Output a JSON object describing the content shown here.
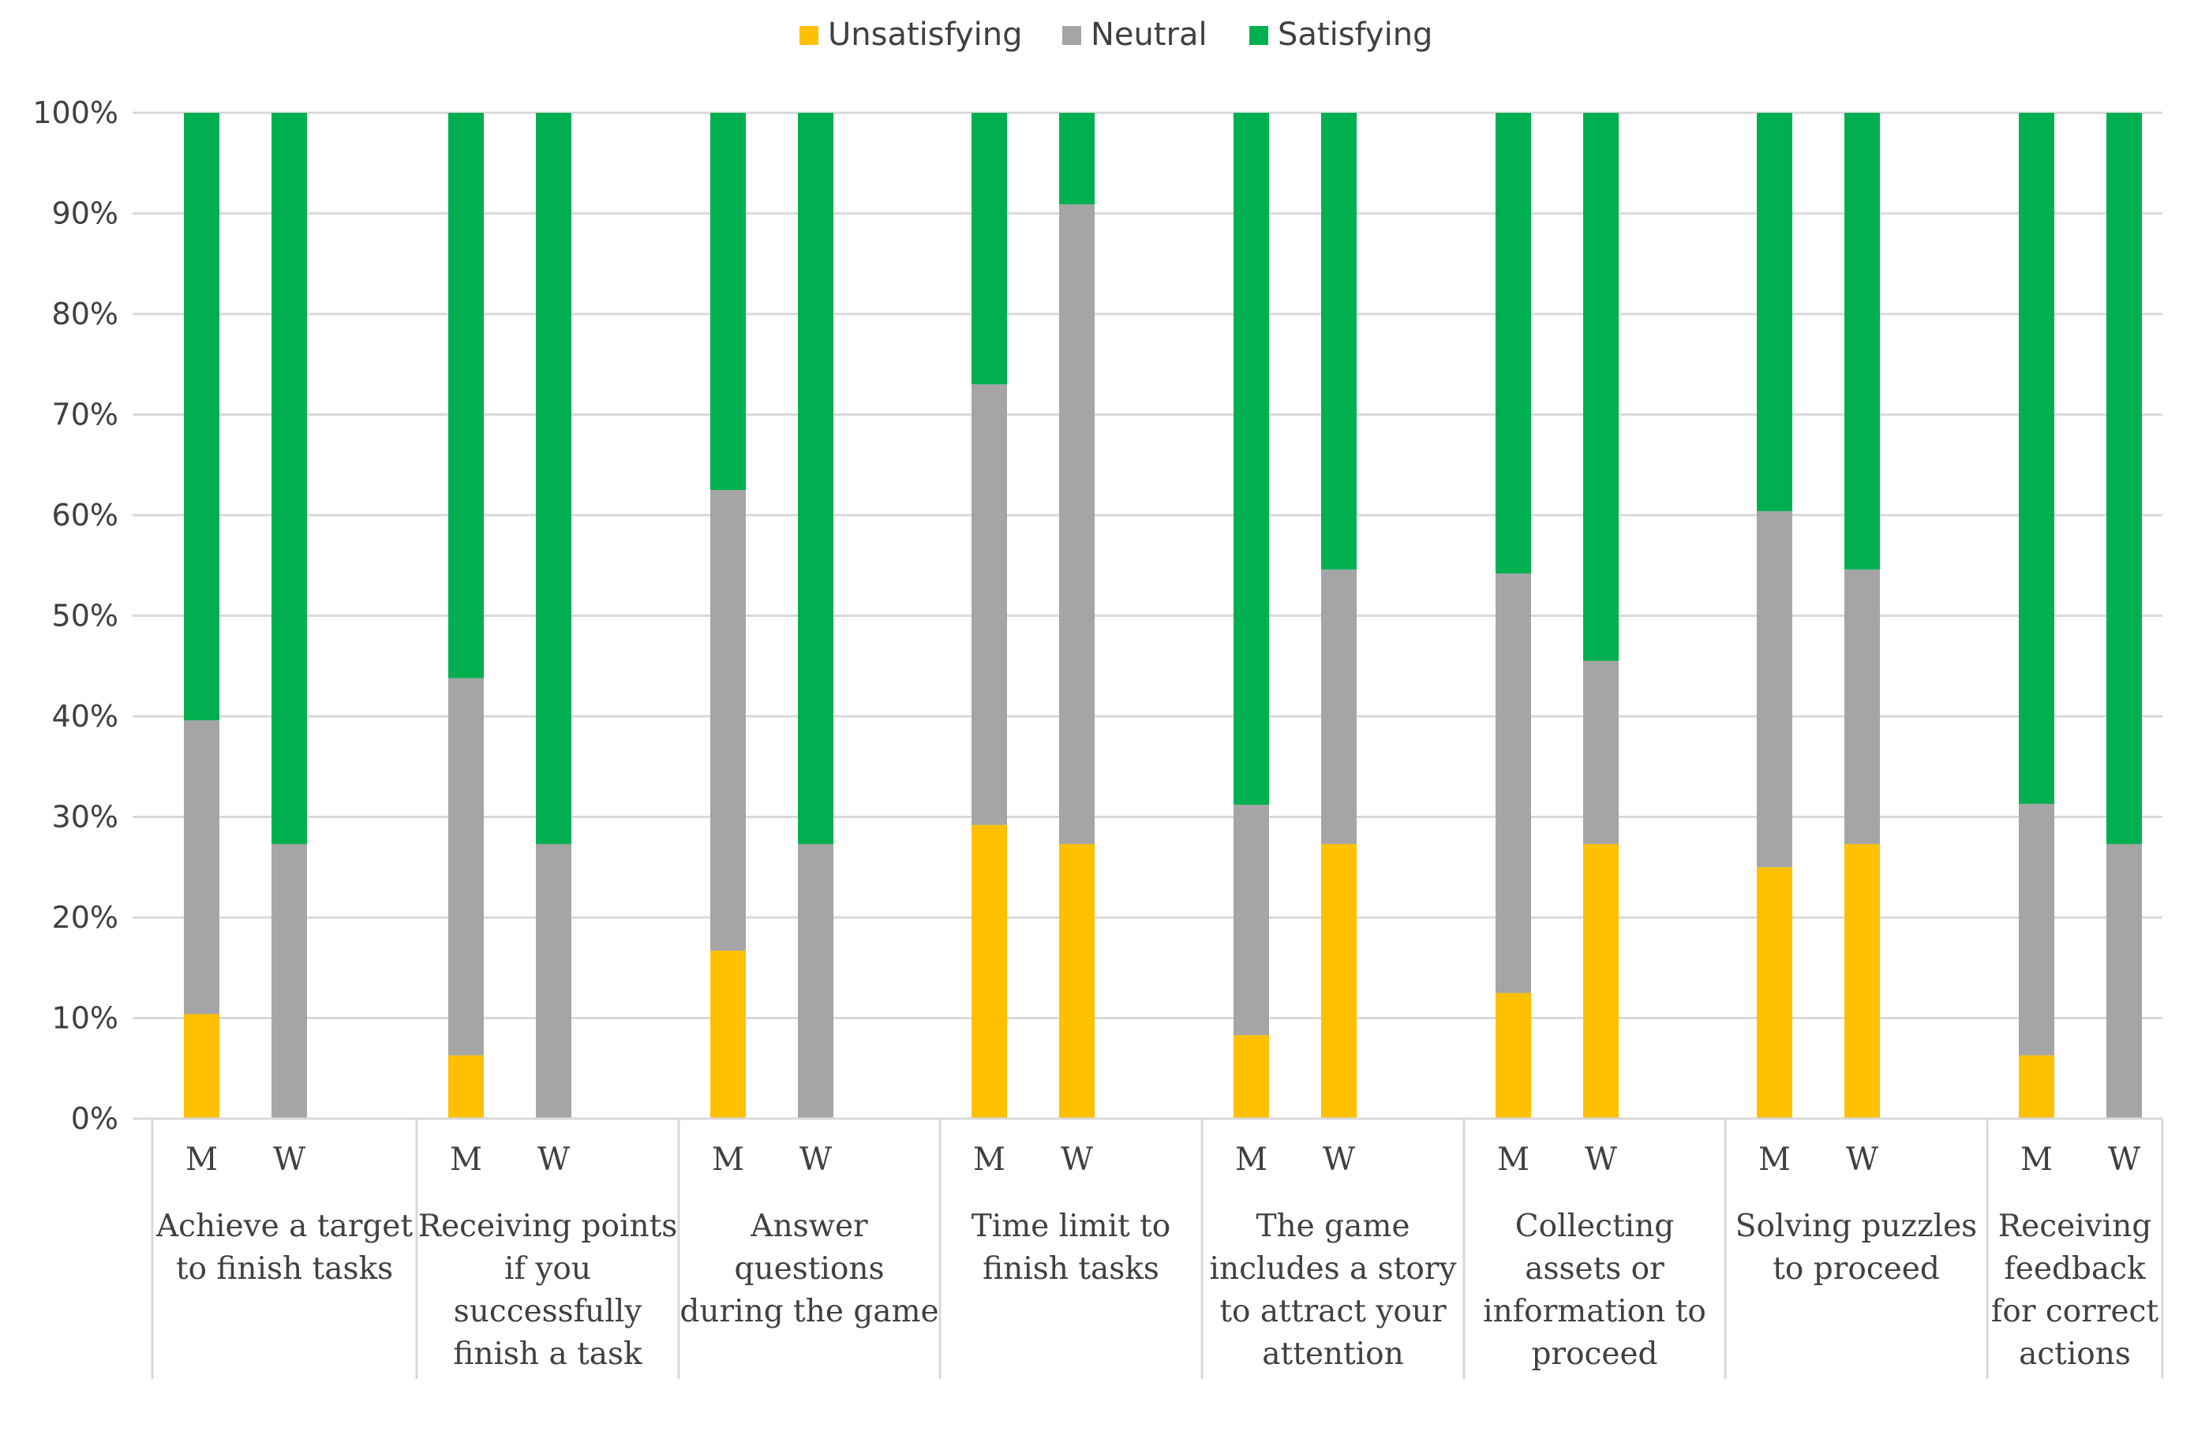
{
  "chart_data": {
    "type": "bar",
    "stacked": true,
    "percent": true,
    "legend": {
      "position": "top",
      "entries": [
        "Unsatisfying",
        "Neutral",
        "Satisfying"
      ]
    },
    "colors": {
      "Unsatisfying": "#FFC000",
      "Neutral": "#A5A5A5",
      "Satisfying": "#00B050"
    },
    "ylim": [
      0,
      100
    ],
    "yticks": [
      "0%",
      "10%",
      "20%",
      "30%",
      "40%",
      "50%",
      "60%",
      "70%",
      "80%",
      "90%",
      "100%"
    ],
    "grid": true,
    "groups": [
      {
        "label_lines": [
          "Achieve a target",
          "to finish tasks"
        ],
        "bars": [
          {
            "sub": "M",
            "values": [
              10.4,
              29.2,
              60.4
            ]
          },
          {
            "sub": "W",
            "values": [
              0,
              27.3,
              72.7
            ]
          }
        ]
      },
      {
        "label_lines": [
          "Receiving points",
          "if you",
          "successfully",
          "finish a task"
        ],
        "bars": [
          {
            "sub": "M",
            "values": [
              6.3,
              37.5,
              56.2
            ]
          },
          {
            "sub": "W",
            "values": [
              0,
              27.3,
              72.7
            ]
          }
        ]
      },
      {
        "label_lines": [
          "Answer",
          "questions",
          "during the game"
        ],
        "bars": [
          {
            "sub": "M",
            "values": [
              16.7,
              45.8,
              37.5
            ]
          },
          {
            "sub": "W",
            "values": [
              0,
              27.3,
              72.7
            ]
          }
        ]
      },
      {
        "label_lines": [
          "Time limit to",
          "finish tasks"
        ],
        "bars": [
          {
            "sub": "M",
            "values": [
              29.2,
              43.8,
              27.0
            ]
          },
          {
            "sub": "W",
            "values": [
              27.3,
              63.6,
              9.1
            ]
          }
        ]
      },
      {
        "label_lines": [
          "The game",
          "includes a story",
          "to attract your",
          "attention"
        ],
        "bars": [
          {
            "sub": "M",
            "values": [
              8.3,
              22.9,
              68.8
            ]
          },
          {
            "sub": "W",
            "values": [
              27.3,
              27.3,
              45.4
            ]
          }
        ]
      },
      {
        "label_lines": [
          "Collecting",
          "assets or",
          "information to",
          "proceed"
        ],
        "bars": [
          {
            "sub": "M",
            "values": [
              12.5,
              41.7,
              45.8
            ]
          },
          {
            "sub": "W",
            "values": [
              27.3,
              18.2,
              54.5
            ]
          }
        ]
      },
      {
        "label_lines": [
          "Solving puzzles",
          "to proceed"
        ],
        "bars": [
          {
            "sub": "M",
            "values": [
              25.0,
              35.4,
              39.6
            ]
          },
          {
            "sub": "W",
            "values": [
              27.3,
              27.3,
              45.4
            ]
          }
        ]
      },
      {
        "label_lines": [
          "Receiving",
          "feedback",
          "for correct",
          "actions"
        ],
        "bars": [
          {
            "sub": "M",
            "values": [
              6.3,
              25.0,
              68.7
            ]
          },
          {
            "sub": "W",
            "values": [
              0,
              27.3,
              72.7
            ]
          }
        ]
      }
    ]
  }
}
